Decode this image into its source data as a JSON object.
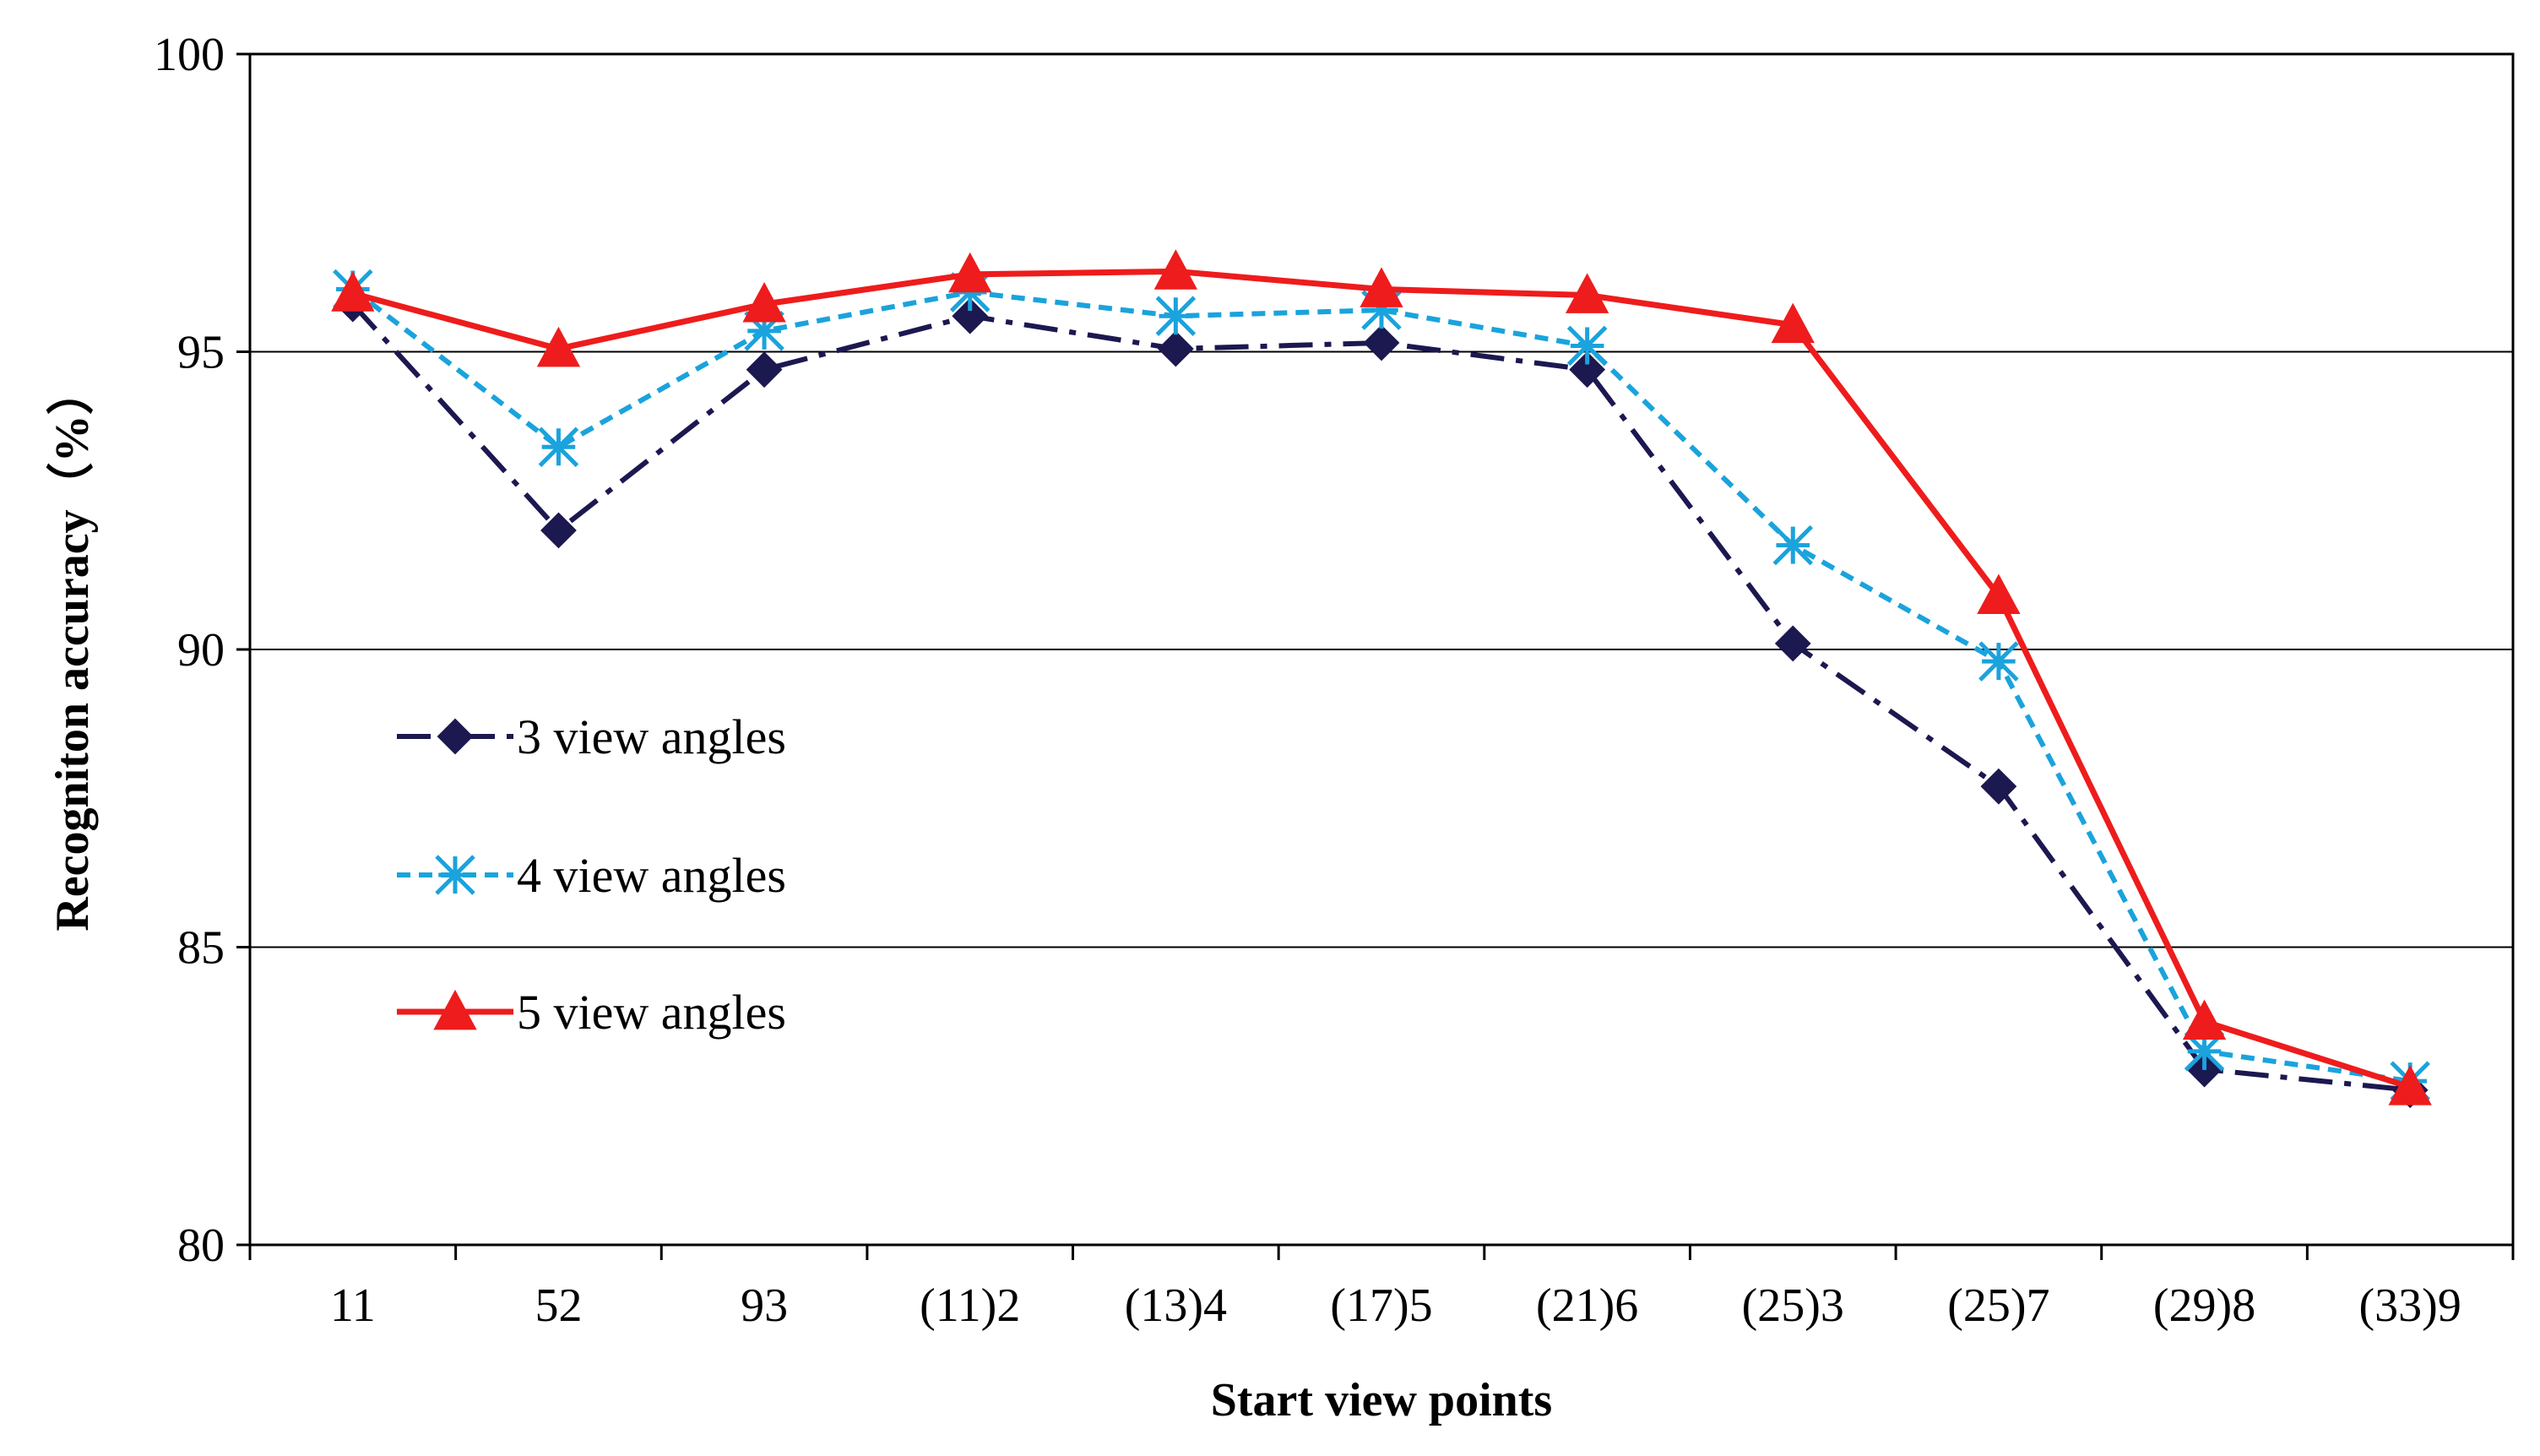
{
  "chart_data": {
    "type": "line",
    "title": "",
    "xlabel": "Start view points",
    "ylabel": "Recogniton accuracy（%）",
    "categories": [
      "11",
      "52",
      "93",
      "(11)2",
      "(13)4",
      "(17)5",
      "(21)6",
      "(25)3",
      "(25)7",
      "(29)8",
      "(33)9"
    ],
    "ylim": [
      80,
      100
    ],
    "yticks": [
      "80",
      "85",
      "90",
      "95",
      "100"
    ],
    "grid": "horizontal",
    "legend_position": "left-middle",
    "series": [
      {
        "name": "3 view angles",
        "color": "#1c1850",
        "dash": "dash-dot",
        "marker": "diamond",
        "values": [
          95.8,
          92.0,
          94.7,
          95.6,
          95.05,
          95.15,
          94.7,
          90.1,
          87.7,
          82.95,
          82.6
        ]
      },
      {
        "name": "4 view angles",
        "color": "#1aa3dc",
        "dash": "dashed",
        "marker": "asterisk",
        "values": [
          96.05,
          93.4,
          95.35,
          96.0,
          95.6,
          95.7,
          95.1,
          91.75,
          89.8,
          83.25,
          82.75
        ]
      },
      {
        "name": "5 view angles",
        "color": "#ee1c1c",
        "dash": "solid",
        "marker": "triangle",
        "values": [
          95.98,
          95.05,
          95.8,
          96.3,
          96.35,
          96.05,
          95.95,
          95.45,
          90.9,
          83.75,
          82.65
        ]
      }
    ]
  }
}
